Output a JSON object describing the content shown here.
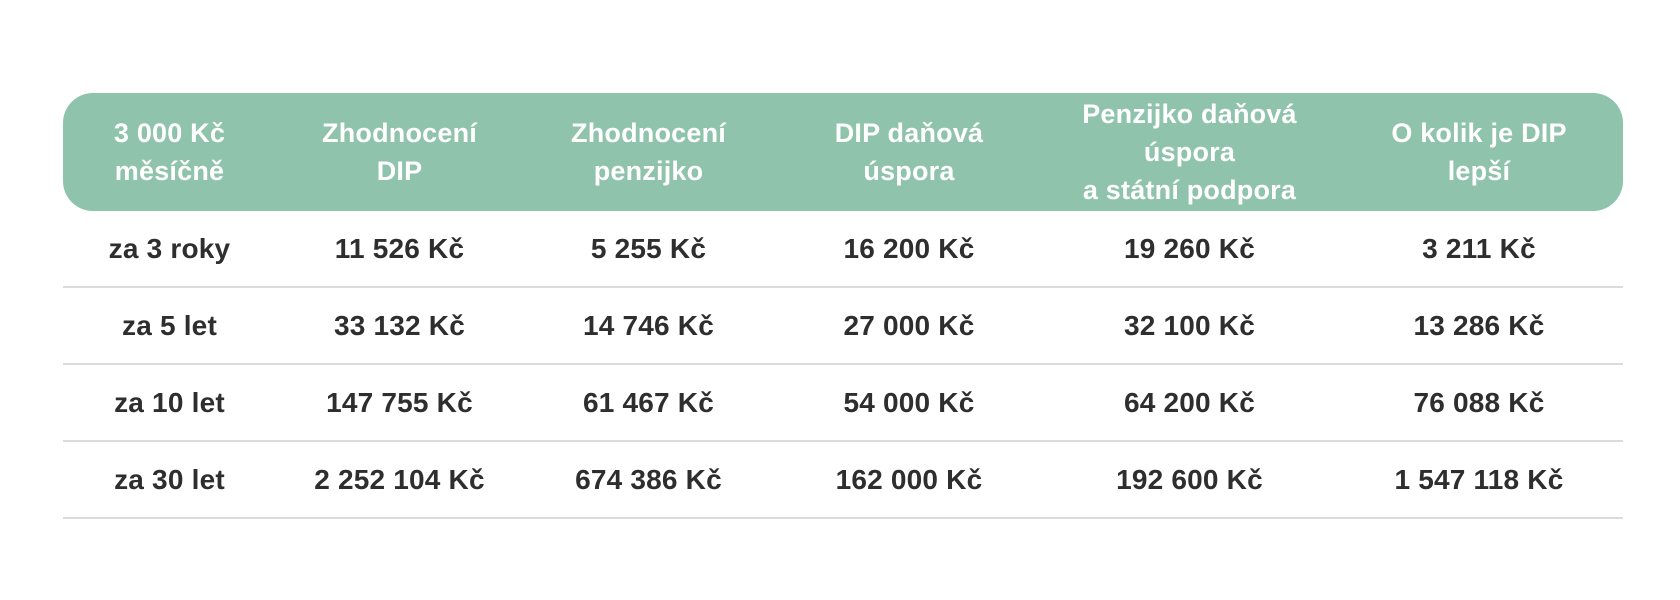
{
  "colors": {
    "header_bg": "#8FC3AB",
    "header_text": "#FFFFFF",
    "body_text": "#2E2E2E",
    "divider": "#DBDBDB",
    "page_bg": "#FFFFFF"
  },
  "table_display": {
    "header_labels": [
      "3 000 Kč\nměsíčně",
      "Zhodnocení\nDIP",
      "Zhodnocení\npenzijko",
      "DIP daňová\núspora",
      "Penzijko daňová úspora\na státní podpora",
      "O kolik je DIP\nlepší"
    ]
  },
  "chart_data": {
    "type": "table",
    "columns": [
      "3 000 Kč měsíčně",
      "Zhodnocení DIP",
      "Zhodnocení penzijko",
      "DIP daňová úspora",
      "Penzijko daňová úspora a státní podpora",
      "O kolik je DIP lepší"
    ],
    "rows": [
      [
        "za 3 roky",
        "11 526 Kč",
        "5 255 Kč",
        "16 200 Kč",
        "19 260 Kč",
        "3 211 Kč"
      ],
      [
        "za 5 let",
        "33 132 Kč",
        "14 746 Kč",
        "27 000 Kč",
        "32 100 Kč",
        "13 286 Kč"
      ],
      [
        "za 10 let",
        "147 755 Kč",
        "61 467 Kč",
        "54 000 Kč",
        "64 200 Kč",
        "76 088 Kč"
      ],
      [
        "za 30 let",
        "2 252 104 Kč",
        "674 386 Kč",
        "162 000 Kč",
        "192 600 Kč",
        "1 547 118 Kč"
      ]
    ],
    "values_numeric": {
      "unit": "Kč",
      "monthly_contribution": 3000,
      "periods_years": [
        3,
        5,
        10,
        30
      ],
      "series": [
        {
          "name": "Zhodnocení DIP",
          "values": [
            11526,
            33132,
            147755,
            2252104
          ]
        },
        {
          "name": "Zhodnocení penzijko",
          "values": [
            5255,
            14746,
            61467,
            674386
          ]
        },
        {
          "name": "DIP daňová úspora",
          "values": [
            16200,
            27000,
            54000,
            162000
          ]
        },
        {
          "name": "Penzijko daňová úspora a státní podpora",
          "values": [
            19260,
            32100,
            64200,
            192600
          ]
        },
        {
          "name": "O kolik je DIP lepší",
          "values": [
            3211,
            13286,
            76088,
            1547118
          ]
        }
      ]
    }
  }
}
